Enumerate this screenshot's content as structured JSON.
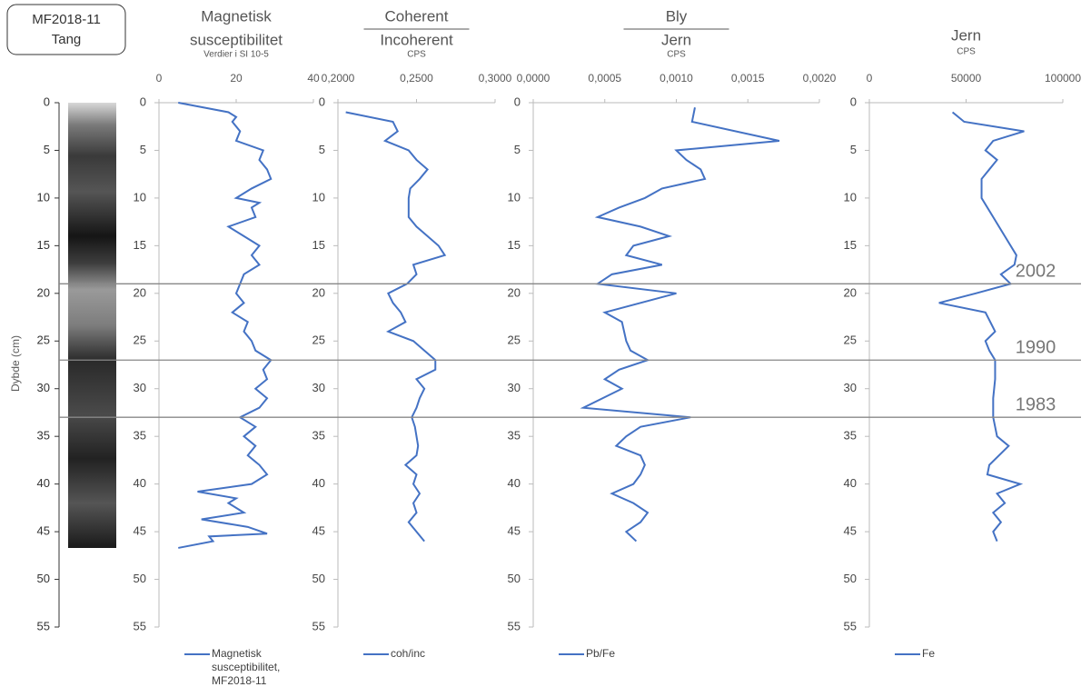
{
  "header_box": {
    "lines": [
      "MF2018-11",
      "Tang"
    ]
  },
  "core_axis": {
    "ylabel": "Dybde (cm)",
    "ylim": [
      0,
      55
    ],
    "y_inverted": true,
    "yticks": [
      0,
      5,
      10,
      15,
      20,
      25,
      30,
      35,
      40,
      45,
      50,
      55
    ]
  },
  "reference_lines": [
    {
      "value": 19,
      "label": "2002"
    },
    {
      "value": 27,
      "label": "1990"
    },
    {
      "value": 33,
      "label": "1983"
    }
  ],
  "chart_data": [
    {
      "type": "line",
      "title_lines": [
        "Magnetisk",
        "susceptibilitet"
      ],
      "fraction": false,
      "subtitle": "Verdier i SI 10-5",
      "xlim": [
        0,
        40
      ],
      "xticks": [
        0,
        20,
        40
      ],
      "ylim": [
        0,
        55
      ],
      "y_inverted": true,
      "yticks": [
        0,
        5,
        10,
        15,
        20,
        25,
        30,
        35,
        40,
        45,
        50,
        55
      ],
      "series": [
        {
          "name": "Magnetisk susceptibilitet, MF2018-11",
          "color": "#4472c4",
          "depth": [
            0,
            1,
            1.5,
            2,
            3,
            4,
            5,
            6,
            7,
            8,
            9,
            10,
            10.5,
            11,
            12,
            13,
            14,
            15,
            16,
            17,
            18,
            19,
            20,
            21,
            22,
            23,
            24,
            25,
            26,
            27,
            28,
            29,
            30,
            31,
            32,
            33,
            34,
            35,
            36,
            37,
            38,
            39,
            40,
            40.8,
            41.5,
            42,
            43,
            43.7,
            44.5,
            45.2,
            45.5,
            46,
            46.7
          ],
          "values": [
            5,
            18,
            20,
            19,
            21,
            20,
            27,
            26,
            28,
            29,
            24,
            20,
            26,
            24,
            25,
            18,
            22,
            26,
            24,
            26,
            22,
            21,
            20,
            22,
            19,
            23,
            22,
            24,
            25,
            29,
            27,
            28,
            25,
            28,
            26,
            21,
            25,
            22,
            25,
            23,
            26,
            28,
            24,
            10,
            20,
            18,
            22,
            11,
            23,
            28,
            13,
            14,
            5
          ]
        }
      ]
    },
    {
      "type": "line",
      "title_lines": [
        "Coherent",
        "Incoherent"
      ],
      "fraction": true,
      "subtitle": "CPS",
      "xlim": [
        0.2,
        0.3
      ],
      "xticks": [
        {
          "value": 0.2,
          "label": "0,2000"
        },
        {
          "value": 0.25,
          "label": "0,2500"
        },
        {
          "value": 0.3,
          "label": "0,3000"
        }
      ],
      "ylim": [
        0,
        55
      ],
      "y_inverted": true,
      "yticks": [
        0,
        5,
        10,
        15,
        20,
        25,
        30,
        35,
        40,
        45,
        50,
        55
      ],
      "series": [
        {
          "name": "coh/inc",
          "color": "#4472c4",
          "depth": [
            1,
            2,
            3,
            4,
            5,
            6,
            7,
            8,
            9,
            10,
            12,
            13,
            14,
            15,
            16,
            17,
            18,
            19,
            20,
            21,
            22,
            23,
            24,
            25,
            26,
            27,
            28,
            29,
            30,
            31,
            32,
            33,
            34,
            35,
            36,
            37,
            38,
            39,
            40,
            41,
            42,
            43,
            44,
            45,
            46
          ],
          "values": [
            0.205,
            0.235,
            0.238,
            0.23,
            0.245,
            0.25,
            0.257,
            0.252,
            0.246,
            0.245,
            0.245,
            0.25,
            0.257,
            0.264,
            0.268,
            0.248,
            0.25,
            0.244,
            0.232,
            0.235,
            0.24,
            0.243,
            0.232,
            0.248,
            0.255,
            0.262,
            0.262,
            0.25,
            0.255,
            0.252,
            0.25,
            0.247,
            0.249,
            0.25,
            0.251,
            0.25,
            0.243,
            0.25,
            0.248,
            0.252,
            0.248,
            0.25,
            0.245,
            0.25,
            0.255
          ]
        }
      ]
    },
    {
      "type": "line",
      "title_lines": [
        "Bly",
        "Jern"
      ],
      "fraction": true,
      "subtitle": "CPS",
      "xlim": [
        0,
        0.002
      ],
      "xticks": [
        {
          "value": 0,
          "label": "0,0000"
        },
        {
          "value": 0.0005,
          "label": "0,0005"
        },
        {
          "value": 0.001,
          "label": "0,0010"
        },
        {
          "value": 0.0015,
          "label": "0,0015"
        },
        {
          "value": 0.002,
          "label": "0,0020"
        }
      ],
      "ylim": [
        0,
        55
      ],
      "y_inverted": true,
      "yticks": [
        0,
        5,
        10,
        15,
        20,
        25,
        30,
        35,
        40,
        45,
        50,
        55
      ],
      "series": [
        {
          "name": "Pb/Fe",
          "color": "#4472c4",
          "depth": [
            0.5,
            2,
            4,
            5,
            6,
            7,
            8,
            9,
            10,
            11,
            12,
            13,
            14,
            15,
            16,
            17,
            18,
            19,
            20,
            21,
            22,
            23,
            25,
            26,
            27,
            28,
            29,
            30,
            32,
            33,
            34,
            35,
            36,
            37,
            38,
            39,
            40,
            41,
            42,
            43,
            44,
            45,
            46
          ],
          "values": [
            0.00113,
            0.00111,
            0.00172,
            0.001,
            0.00107,
            0.00117,
            0.0012,
            0.0009,
            0.00078,
            0.0006,
            0.00045,
            0.00075,
            0.00095,
            0.0007,
            0.00065,
            0.0009,
            0.00055,
            0.00045,
            0.001,
            0.00075,
            0.0005,
            0.00062,
            0.00065,
            0.00068,
            0.0008,
            0.0006,
            0.0005,
            0.00062,
            0.00035,
            0.0011,
            0.00075,
            0.00065,
            0.00058,
            0.00075,
            0.00078,
            0.00075,
            0.0007,
            0.00055,
            0.0007,
            0.0008,
            0.00075,
            0.00065,
            0.00072
          ]
        }
      ]
    },
    {
      "type": "line",
      "title_lines": [
        "Jern"
      ],
      "fraction": false,
      "subtitle": "CPS",
      "xlim": [
        0,
        100000
      ],
      "xticks": [
        0,
        50000,
        100000
      ],
      "ylim": [
        0,
        55
      ],
      "y_inverted": true,
      "yticks": [
        0,
        5,
        10,
        15,
        20,
        25,
        30,
        35,
        40,
        45,
        50,
        55
      ],
      "series": [
        {
          "name": "Fe",
          "color": "#4472c4",
          "depth": [
            1,
            2,
            3,
            4,
            5,
            6,
            7,
            8,
            10,
            12,
            14,
            16,
            17,
            18,
            19,
            20,
            21,
            22,
            24,
            25,
            26,
            27,
            29,
            31,
            33,
            35,
            36,
            38,
            39,
            40,
            41,
            42,
            43,
            44,
            45,
            46
          ],
          "values": [
            43000,
            49000,
            80000,
            64000,
            60000,
            66000,
            62000,
            58000,
            58000,
            64000,
            70000,
            76000,
            75000,
            68000,
            73000,
            55000,
            36000,
            60000,
            65000,
            60000,
            62000,
            65000,
            65000,
            64000,
            64000,
            66000,
            72000,
            62000,
            61000,
            78000,
            66000,
            70000,
            64000,
            68000,
            64000,
            66000
          ]
        }
      ]
    }
  ]
}
